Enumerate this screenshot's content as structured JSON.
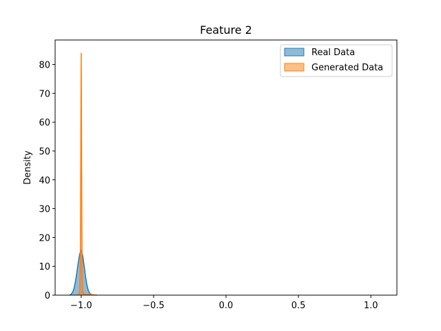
{
  "chart_data": {
    "type": "area",
    "title": "Feature 2",
    "xlabel": "",
    "ylabel": "Density",
    "xlim": [
      -1.18,
      1.18
    ],
    "ylim": [
      0,
      88.5
    ],
    "xticks": [
      -1.0,
      -0.5,
      0.0,
      0.5,
      1.0
    ],
    "xtick_labels": [
      "−1.0",
      "−0.5",
      "0.0",
      "0.5",
      "1.0"
    ],
    "yticks": [
      0,
      10,
      20,
      30,
      40,
      50,
      60,
      70,
      80
    ],
    "ytick_labels": [
      "0",
      "10",
      "20",
      "30",
      "40",
      "50",
      "60",
      "70",
      "80"
    ],
    "grid": false,
    "legend_position": "top-right",
    "series": [
      {
        "name": "Real Data",
        "color": "#1f77b4",
        "x": [
          -1.08,
          -1.07,
          -1.06,
          -1.05,
          -1.04,
          -1.03,
          -1.02,
          -1.01,
          -1.0,
          -0.99,
          -0.98,
          -0.97,
          -0.96,
          -0.95,
          -0.94,
          -0.93,
          -0.92
        ],
        "y": [
          0.0,
          0.3,
          0.9,
          2.2,
          4.6,
          7.8,
          11.4,
          14.4,
          15.4,
          13.9,
          10.3,
          6.4,
          3.4,
          1.5,
          0.6,
          0.2,
          0.0
        ]
      },
      {
        "name": "Generated Data",
        "color": "#ff7f0e",
        "x": [
          -1.03,
          -1.015,
          -1.01,
          -1.006,
          -1.003,
          -1.001,
          -1.0,
          -0.999,
          -0.997,
          -0.994,
          -0.99,
          -0.985,
          -0.97,
          -0.95,
          -0.93,
          -0.91,
          -0.89
        ],
        "y": [
          0.0,
          0.3,
          2.0,
          12.0,
          45.0,
          75.0,
          84.0,
          75.0,
          45.0,
          12.0,
          2.0,
          0.5,
          0.3,
          0.3,
          0.2,
          0.1,
          0.0
        ]
      }
    ]
  }
}
